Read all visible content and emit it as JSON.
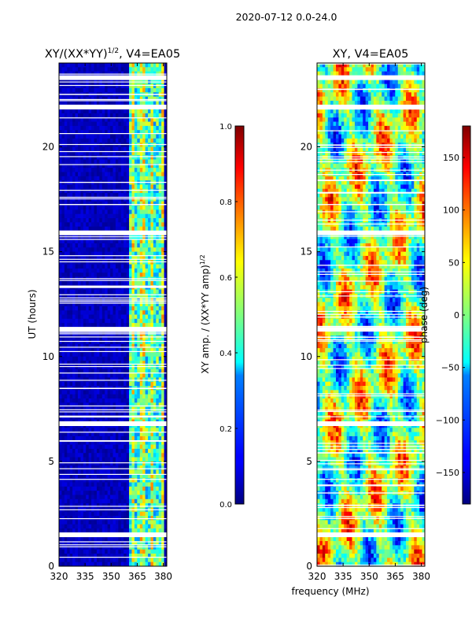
{
  "figure": {
    "suptitle": "2020-07-12 0.0-24.0",
    "xlabel": "frequency (MHz)"
  },
  "chart_data": [
    {
      "type": "heatmap",
      "title_base": "XY/(XX*YY)",
      "title_exp": "1/2",
      "title_tail": ", V4=EA05",
      "xlabel": "",
      "ylabel": "UT (hours)",
      "xlim": [
        320,
        382
      ],
      "ylim": [
        0,
        24
      ],
      "xticks": [
        "320",
        "335",
        "350",
        "365",
        "380"
      ],
      "xtick_values": [
        320,
        335,
        350,
        365,
        380
      ],
      "yticks": [
        "0",
        "5",
        "10",
        "15",
        "20"
      ],
      "ytick_values": [
        0,
        5,
        10,
        15,
        20
      ],
      "active_band_mhz": [
        360,
        380
      ],
      "colorbar": {
        "label_base": "XY amp. / (XX*YY amp)",
        "label_exp": "1/2",
        "ticks": [
          "0.0",
          "0.2",
          "0.4",
          "0.6",
          "0.8",
          "1.0"
        ],
        "tick_values": [
          0,
          0.2,
          0.4,
          0.6,
          0.8,
          1.0
        ],
        "range": [
          0,
          1
        ],
        "colormap": "jet"
      }
    },
    {
      "type": "heatmap",
      "title": "XY, V4=EA05",
      "xlabel": "",
      "ylabel": "",
      "xlim": [
        320,
        382
      ],
      "ylim": [
        0,
        24
      ],
      "xticks": [
        "320",
        "335",
        "350",
        "365",
        "380"
      ],
      "xtick_values": [
        320,
        335,
        350,
        365,
        380
      ],
      "yticks": [
        "0",
        "5",
        "10",
        "15",
        "20"
      ],
      "ytick_values": [
        0,
        5,
        10,
        15,
        20
      ],
      "colorbar": {
        "label": "phase (deg)",
        "ticks": [
          "−150",
          "−100",
          "−50",
          "0",
          "50",
          "100",
          "150"
        ],
        "tick_values": [
          -150,
          -100,
          -50,
          0,
          50,
          100,
          150
        ],
        "range": [
          -180,
          180
        ],
        "colormap": "jet"
      }
    }
  ],
  "flagged_ut_hours": [
    1.5,
    6.8,
    11.3,
    15.9,
    21.9,
    23.3
  ]
}
